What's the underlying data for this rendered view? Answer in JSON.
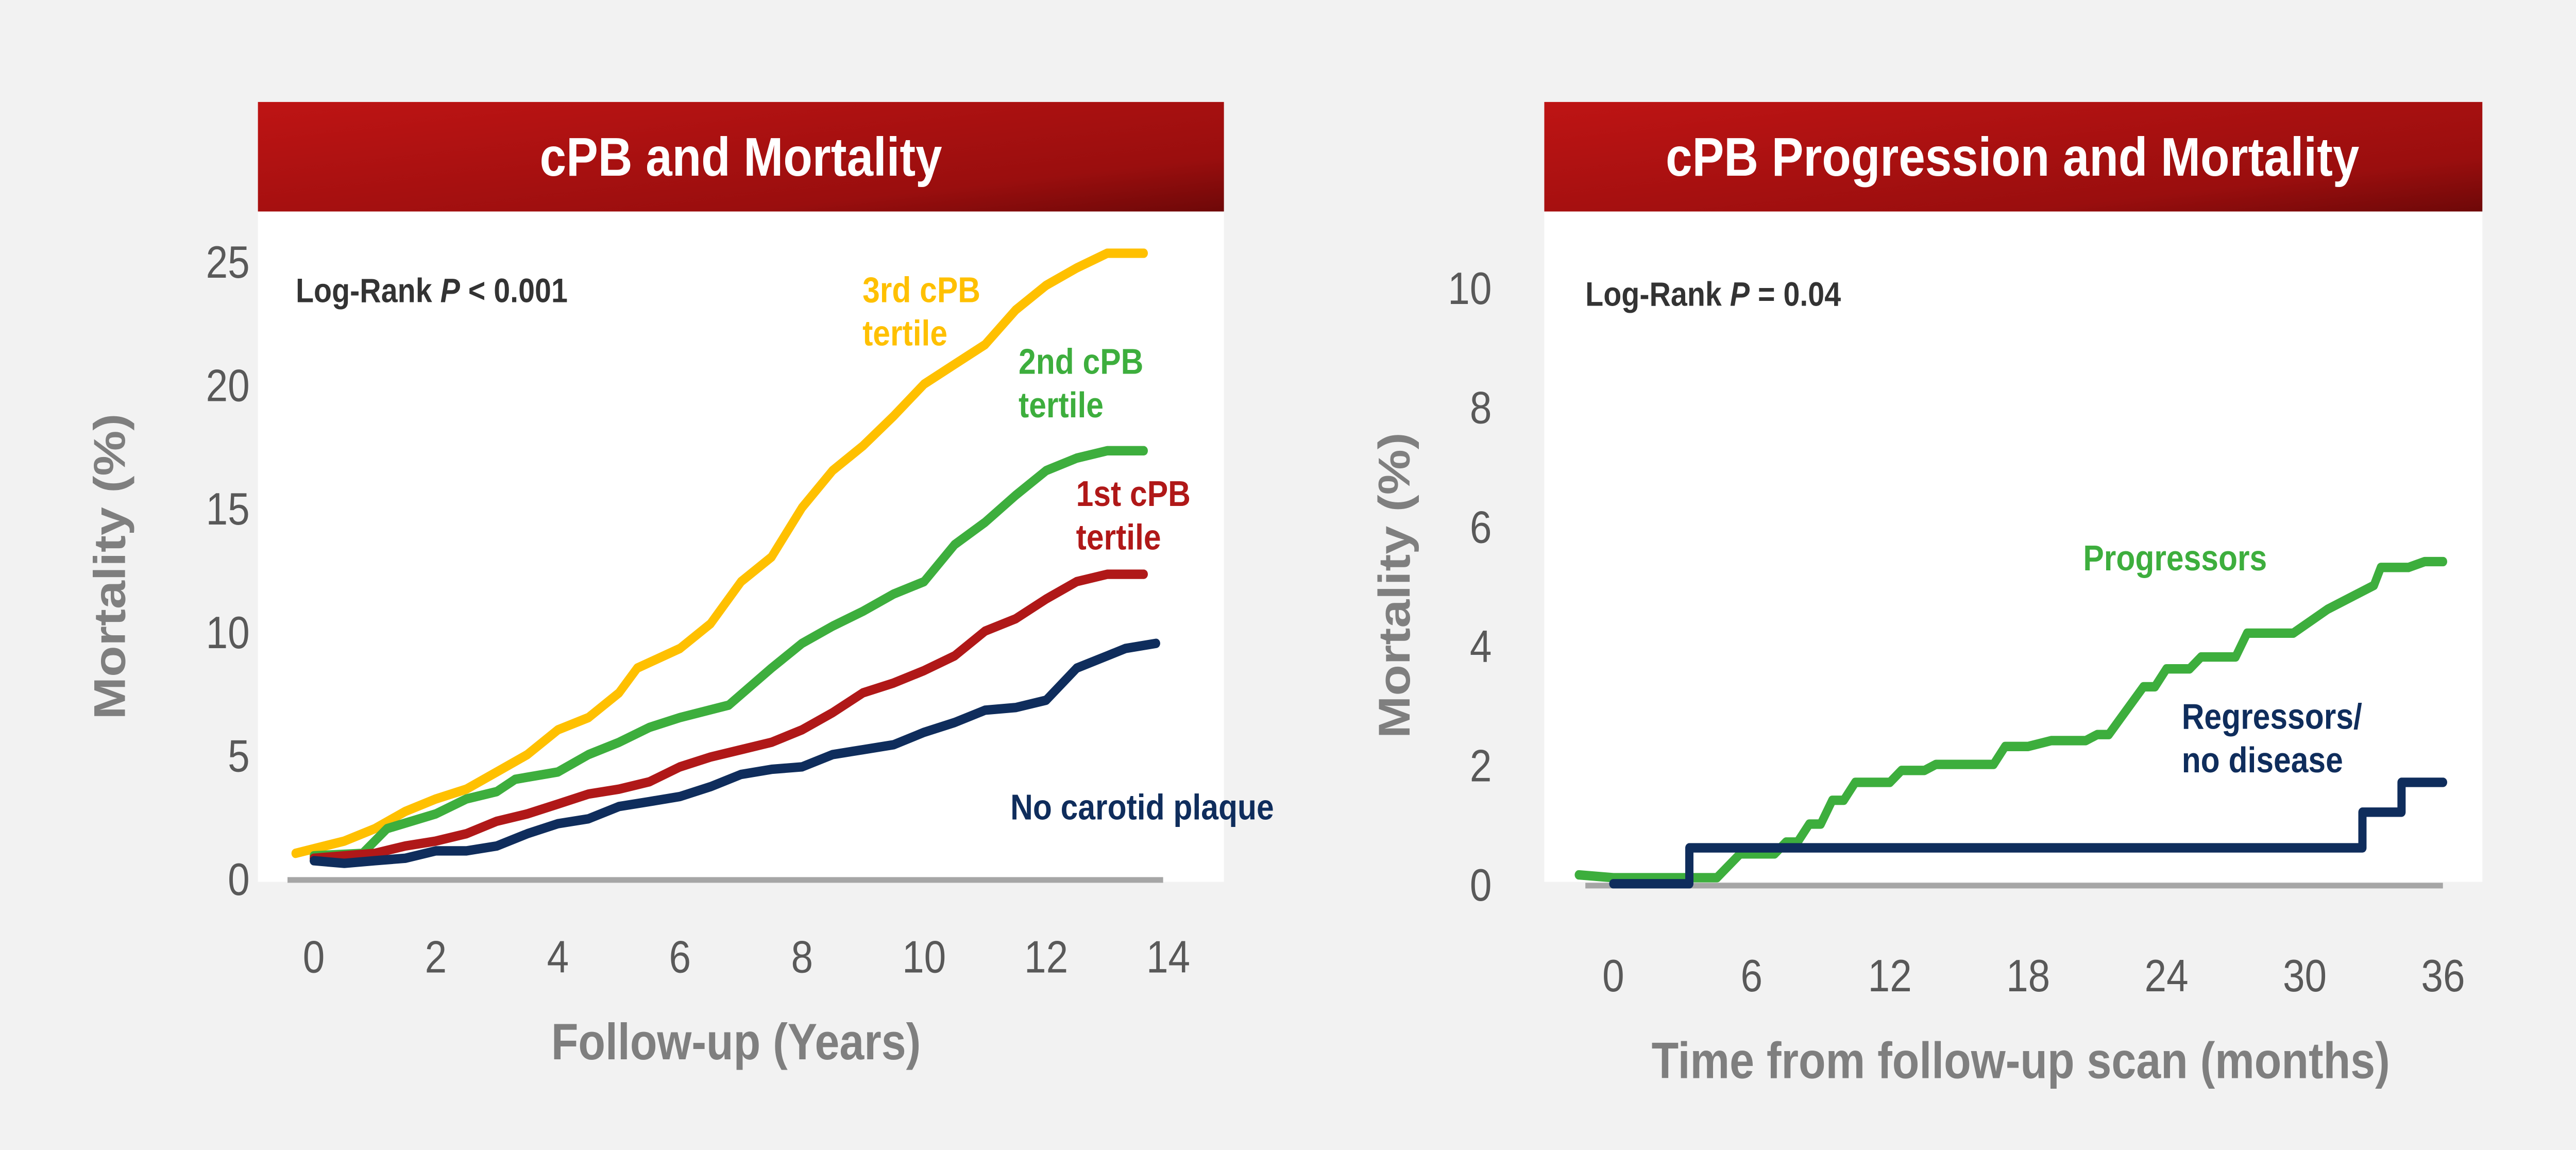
{
  "chart_data": [
    {
      "type": "line",
      "title": "cPB and Mortality",
      "annotation": {
        "prefix": "Log-Rank ",
        "p": "P",
        "suffix": " < 0.001"
      },
      "xlabel": "Follow-up (Years)",
      "ylabel": "Mortality (%)",
      "xlim": [
        -0.5,
        14
      ],
      "ylim": [
        0,
        25
      ],
      "xticks": [
        0,
        2,
        4,
        6,
        8,
        10,
        12,
        14
      ],
      "yticks": [
        0,
        5,
        10,
        15,
        20,
        25
      ],
      "grid": false,
      "series": [
        {
          "name": "3rd cPB tertile",
          "label_lines": [
            "3rd cPB",
            "tertile"
          ],
          "color": "#FFC000",
          "x": [
            -0.3,
            0.5,
            1,
            1.5,
            2,
            2.5,
            3,
            3.5,
            4,
            4.5,
            5,
            5.3,
            6,
            6.5,
            7,
            7.5,
            8,
            8.5,
            9,
            9.5,
            10,
            10.5,
            11,
            11.5,
            12,
            12.5,
            13,
            13.6
          ],
          "y": [
            1,
            1.5,
            2,
            2.7,
            3.2,
            3.6,
            4.3,
            5,
            6,
            6.5,
            7.5,
            8.5,
            9.3,
            10.3,
            12,
            13,
            15,
            16.5,
            17.5,
            18.7,
            20,
            20.8,
            21.6,
            23,
            24,
            24.7,
            25.3,
            25.3
          ]
        },
        {
          "name": "2nd cPB tertile",
          "label_lines": [
            "2nd cPB",
            "tertile"
          ],
          "color": "#3DAE3D",
          "x": [
            0,
            0.8,
            1.2,
            2,
            2.5,
            3,
            3.3,
            4,
            4.5,
            5,
            5.5,
            6,
            6.8,
            7.5,
            8,
            8.5,
            9,
            9.5,
            10,
            10.5,
            11,
            11.5,
            12,
            12.5,
            13,
            13.6
          ],
          "y": [
            0.9,
            1,
            2,
            2.6,
            3.2,
            3.5,
            4,
            4.3,
            5,
            5.5,
            6.1,
            6.5,
            7,
            8.5,
            9.5,
            10.2,
            10.8,
            11.5,
            12,
            13.5,
            14.4,
            15.5,
            16.5,
            17,
            17.3,
            17.3
          ]
        },
        {
          "name": "1st cPB tertile",
          "label_lines": [
            "1st cPB",
            "tertile"
          ],
          "color": "#B01818",
          "x": [
            0,
            1,
            1.5,
            2,
            2.5,
            3,
            3.5,
            4,
            4.5,
            5,
            5.5,
            6,
            6.5,
            7,
            7.5,
            8,
            8.5,
            9,
            9.5,
            10,
            10.5,
            11,
            11.5,
            12,
            12.5,
            13,
            13.6
          ],
          "y": [
            0.8,
            1,
            1.3,
            1.5,
            1.8,
            2.3,
            2.6,
            3,
            3.4,
            3.6,
            3.9,
            4.5,
            4.9,
            5.2,
            5.5,
            6,
            6.7,
            7.5,
            7.9,
            8.4,
            9,
            10,
            10.5,
            11.3,
            12,
            12.3,
            12.3
          ]
        },
        {
          "name": "No carotid plaque",
          "label_lines": [
            "No carotid plaque"
          ],
          "color": "#0F2D5C",
          "x": [
            0,
            0.5,
            1,
            1.5,
            2,
            2.5,
            3,
            3.5,
            4,
            4.5,
            5,
            5.5,
            6,
            6.5,
            7,
            7.5,
            8,
            8.5,
            9,
            9.5,
            10,
            10.5,
            11,
            11.5,
            12,
            12.5,
            13,
            13.3,
            13.8
          ],
          "y": [
            0.7,
            0.6,
            0.7,
            0.8,
            1.1,
            1.1,
            1.3,
            1.8,
            2.2,
            2.4,
            2.9,
            3.1,
            3.3,
            3.7,
            4.2,
            4.4,
            4.5,
            5,
            5.2,
            5.4,
            5.9,
            6.3,
            6.8,
            6.9,
            7.2,
            8.5,
            9,
            9.3,
            9.5
          ]
        }
      ]
    },
    {
      "type": "line",
      "title": "cPB Progression and Mortality",
      "annotation": {
        "prefix": "Log-Rank ",
        "p": "P",
        "suffix": " = 0.04"
      },
      "xlabel": "Time from follow-up scan  (months)",
      "ylabel": "Mortality (%)",
      "xlim": [
        -3,
        36
      ],
      "ylim": [
        0,
        10
      ],
      "xticks": [
        0,
        6,
        12,
        18,
        24,
        30,
        36
      ],
      "yticks": [
        0,
        2,
        4,
        6,
        8,
        10
      ],
      "grid": false,
      "series": [
        {
          "name": "Progressors",
          "label_lines": [
            "Progressors"
          ],
          "color": "#3DAE3D",
          "x": [
            -1.5,
            0,
            3,
            4.5,
            5.5,
            7,
            7.5,
            8,
            8.5,
            9,
            9.5,
            10,
            10.5,
            12,
            12.5,
            13.5,
            14,
            16.5,
            17,
            18,
            19,
            20.5,
            21,
            21.5,
            23,
            23.5,
            24,
            25,
            25.5,
            27,
            27.5,
            29.5,
            31,
            33,
            33.3,
            34.5,
            35.2,
            36
          ],
          "y": [
            0.15,
            0.1,
            0.1,
            0.1,
            0.5,
            0.5,
            0.7,
            0.7,
            1,
            1,
            1.4,
            1.4,
            1.7,
            1.7,
            1.9,
            1.9,
            2,
            2,
            2.3,
            2.3,
            2.4,
            2.4,
            2.5,
            2.5,
            3.3,
            3.3,
            3.6,
            3.6,
            3.8,
            3.8,
            4.2,
            4.2,
            4.6,
            5.0,
            5.3,
            5.3,
            5.4,
            5.4
          ]
        },
        {
          "name": "Regressors/ no disease",
          "label_lines": [
            "Regressors/",
            "no disease"
          ],
          "color": "#0F2D5C",
          "x": [
            0,
            3.3,
            3.3,
            32.5,
            32.5,
            34.2,
            34.2,
            36
          ],
          "y": [
            0,
            0,
            0.6,
            0.6,
            1.2,
            1.2,
            1.7,
            1.7
          ]
        }
      ]
    }
  ]
}
